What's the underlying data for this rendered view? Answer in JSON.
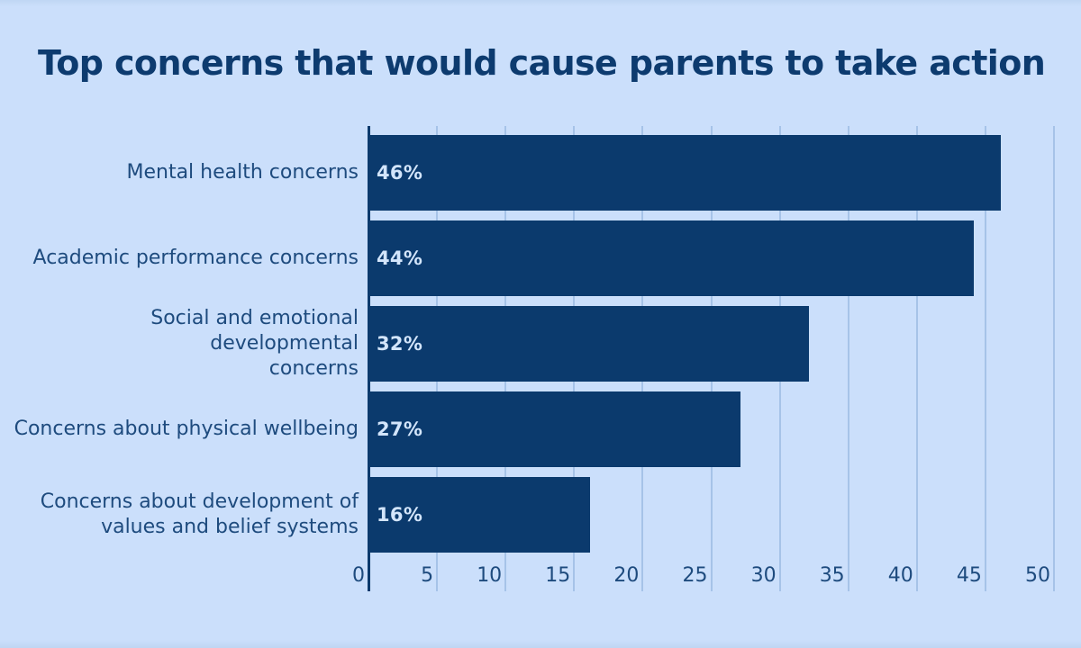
{
  "chart_data": {
    "type": "bar",
    "orientation": "horizontal",
    "title": "Top concerns that would cause parents to take action",
    "categories": [
      "Mental health concerns",
      "Academic performance concerns",
      "Social and emotional developmental\nconcerns",
      "Concerns about physical wellbeing",
      "Concerns about development of\nvalues and belief systems"
    ],
    "values": [
      46,
      44,
      32,
      27,
      16
    ],
    "value_labels": [
      "46%",
      "44%",
      "32%",
      "27%",
      "16%"
    ],
    "xlabel": "",
    "ylabel": "",
    "xlim": [
      0,
      50
    ],
    "x_ticks": [
      0,
      5,
      10,
      15,
      20,
      25,
      30,
      35,
      40,
      45,
      50
    ],
    "grid": "vertical gridlines on, behind bars",
    "legend": "none",
    "colors": {
      "background": "#cbdffb",
      "bar": "#0b3a6d",
      "title": "#0d3b6f",
      "category_label": "#1e4b7e",
      "tick_label": "#1e4b7e",
      "value_label": "#d3e5fb",
      "gridline": "#a6c3e8",
      "axis_line": "#0b3a6d"
    }
  }
}
